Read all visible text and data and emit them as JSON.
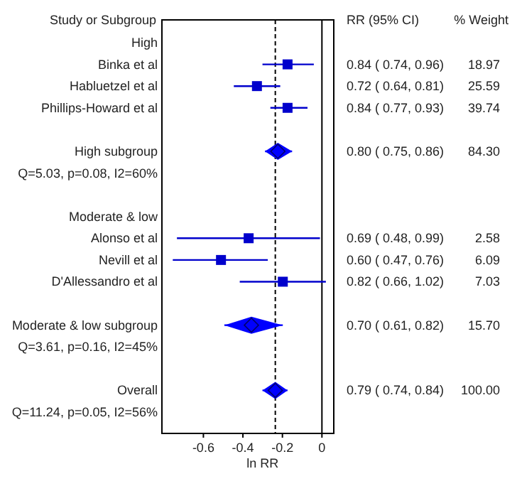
{
  "chart_data": {
    "type": "scatter",
    "orientation": "horizontal",
    "ylabel": "Study or Subgroup",
    "xlabel": "ln RR",
    "annotations": [
      "RR (95% CI)",
      "% Weight"
    ],
    "categories": [
      "High",
      "Binka et al",
      "Habluetzel et al",
      "Phillips-Howard et al",
      null,
      "High subgroup",
      "Q=5.03, p=0.08, I2=60%",
      null,
      "Moderate & low",
      "Alonso et al",
      "Nevill et al",
      "D'Allessandro et al",
      null,
      "Moderate & low subgroup",
      "Q=3.61, p=0.16, I2=45%",
      null,
      "Overall",
      "Q=11.24, p=0.05, I2=56%"
    ],
    "xlim": [
      -0.81,
      0.06
    ],
    "xticks": [
      -0.6,
      -0.4,
      -0.2,
      0
    ],
    "ref_lines": [
      {
        "axis": "x",
        "value": 0,
        "color": "#000000",
        "line_style": "solid"
      },
      {
        "axis": "x",
        "value": -0.236,
        "color": "#000000",
        "line_style": "dashed"
      }
    ],
    "series": [
      {
        "marker": "square",
        "color": "#0000cc",
        "values": [
          null,
          -0.174,
          -0.329,
          -0.174,
          null,
          null,
          null,
          null,
          null,
          -0.371,
          -0.511,
          -0.198,
          null,
          null,
          null,
          null,
          null,
          null
        ],
        "errors": [
          null,
          [
            -0.301,
            -0.041
          ],
          [
            -0.446,
            -0.211
          ],
          [
            -0.261,
            -0.073
          ],
          null,
          null,
          null,
          null,
          null,
          [
            -0.734,
            -0.01
          ],
          [
            -0.755,
            -0.274
          ],
          [
            -0.416,
            0.02
          ],
          null,
          null,
          null,
          null,
          null,
          null
        ],
        "value_labels": [
          null,
          "0.84 ( 0.74, 0.96)   18.97",
          "0.72 ( 0.64, 0.81)   25.59",
          "0.84 ( 0.77, 0.93)   39.74",
          null,
          null,
          null,
          null,
          null,
          "0.69 ( 0.48, 0.99)   2.58",
          "0.60 ( 0.47, 0.76)   6.09",
          "0.82 ( 0.66, 1.02)   7.03",
          null,
          null,
          null,
          null,
          null,
          null
        ]
      },
      {
        "marker": "diamond",
        "color": "#0000ff",
        "values": [
          null,
          null,
          null,
          null,
          null,
          -0.223,
          null,
          null,
          null,
          null,
          null,
          null,
          null,
          -0.357,
          null,
          null,
          -0.236,
          null
        ],
        "errors": [
          null,
          null,
          null,
          null,
          null,
          [
            -0.288,
            -0.151
          ],
          null,
          null,
          null,
          null,
          null,
          null,
          null,
          [
            -0.494,
            -0.198
          ],
          null,
          null,
          [
            -0.301,
            -0.174
          ],
          null
        ],
        "value_labels": [
          null,
          null,
          null,
          null,
          null,
          "0.80 ( 0.75, 0.86)   84.30",
          null,
          null,
          null,
          null,
          null,
          null,
          null,
          "0.70 ( 0.61, 0.82)   15.70",
          null,
          null,
          "0.79 ( 0.74, 0.84)   100.00",
          null
        ]
      }
    ]
  }
}
